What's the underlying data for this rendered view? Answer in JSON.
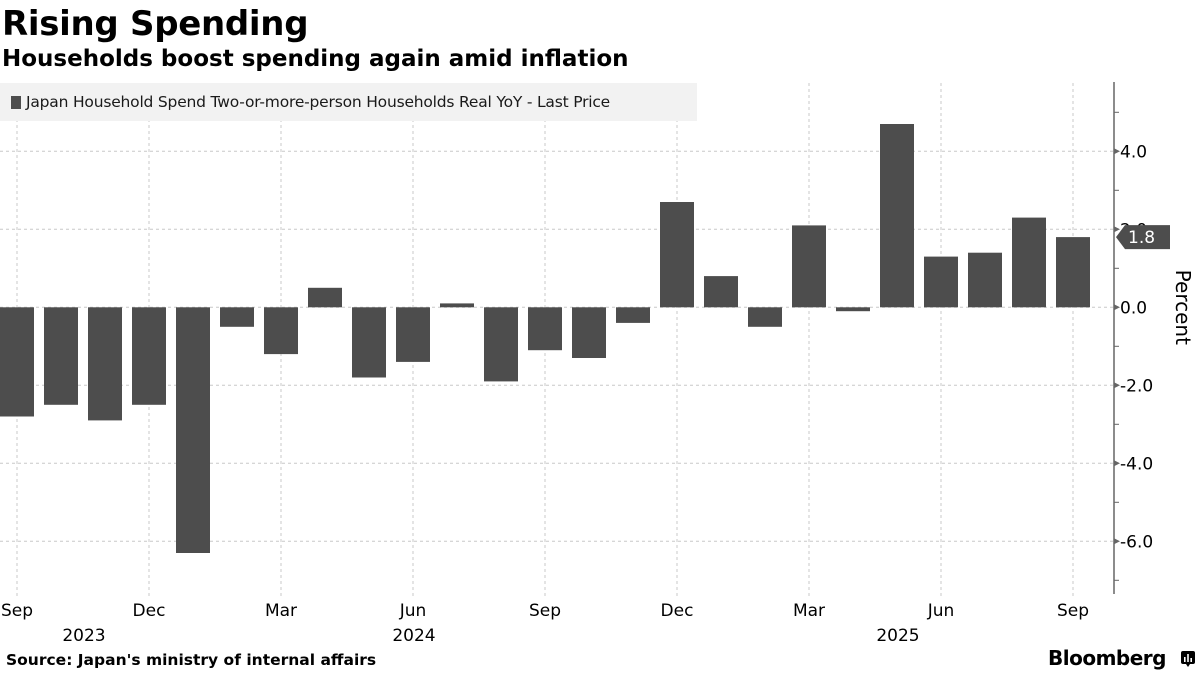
{
  "header": {
    "title": "Rising Spending",
    "subtitle": "Households boost spending again amid inflation"
  },
  "footer": {
    "source": "Source: Japan's ministry of internal affairs",
    "brand": "Bloomberg",
    "brand_icon": "bloomberg-chart-icon"
  },
  "colors": {
    "bar": "#4d4d4d",
    "legend_bg": "#f2f2f2",
    "grid": "#c8c8c8",
    "axis": "#666666",
    "last_value_tag": "#4d4d4d"
  },
  "chart_data": {
    "type": "bar",
    "title": "Rising Spending",
    "subtitle": "Households boost spending again amid inflation",
    "legend": [
      "Japan Household Spend Two-or-more-person Households Real YoY - Last Price"
    ],
    "legend_position": "top-left",
    "xlabel": "",
    "ylabel": "Percent",
    "y_axis_side": "right",
    "ylim": [
      -7.5,
      5.6
    ],
    "yticks": [
      -6.0,
      -4.0,
      -2.0,
      0.0,
      2.0,
      4.0
    ],
    "ytick_labels": [
      "-6.0",
      "-4.0",
      "-2.0",
      "0.0",
      "2.0",
      "4.0"
    ],
    "grid": true,
    "categories": [
      "Sep 2023",
      "Oct 2023",
      "Nov 2023",
      "Dec 2023",
      "Jan 2024",
      "Feb 2024",
      "Mar 2024",
      "Apr 2024",
      "May 2024",
      "Jun 2024",
      "Jul 2024",
      "Aug 2024",
      "Sep 2024",
      "Oct 2024",
      "Nov 2024",
      "Dec 2024",
      "Jan 2025",
      "Feb 2025",
      "Mar 2025",
      "Apr 2025",
      "May 2025",
      "Jun 2025",
      "Jul 2025",
      "Aug 2025",
      "Sep 2025"
    ],
    "series": [
      {
        "name": "Japan Household Spend Two-or-more-person Households Real YoY - Last Price",
        "values": [
          -2.8,
          -2.5,
          -2.9,
          -2.5,
          -6.3,
          -0.5,
          -1.2,
          0.5,
          -1.8,
          -1.4,
          0.1,
          -1.9,
          -1.1,
          -1.3,
          -0.4,
          2.7,
          0.8,
          -0.5,
          2.1,
          -0.1,
          4.7,
          1.3,
          1.4,
          2.3,
          1.8
        ]
      }
    ],
    "xtick_labels": [
      {
        "index": 0,
        "month": "Sep"
      },
      {
        "index": 3,
        "month": "Dec"
      },
      {
        "index": 6,
        "month": "Mar"
      },
      {
        "index": 9,
        "month": "Jun"
      },
      {
        "index": 12,
        "month": "Sep"
      },
      {
        "index": 15,
        "month": "Dec"
      },
      {
        "index": 18,
        "month": "Mar"
      },
      {
        "index": 21,
        "month": "Jun"
      },
      {
        "index": 24,
        "month": "Sep"
      }
    ],
    "year_labels": [
      {
        "index": 1.5,
        "year": "2023"
      },
      {
        "index": 9,
        "year": "2024"
      },
      {
        "index": 20,
        "year": "2025"
      }
    ],
    "last_value_label": "1.8"
  }
}
